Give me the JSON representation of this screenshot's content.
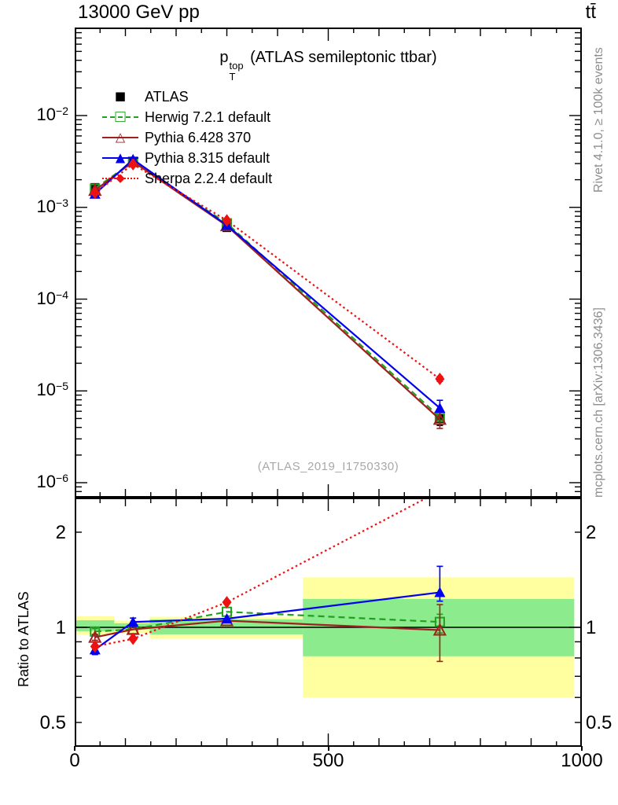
{
  "header": {
    "left_title": "13000 GeV pp",
    "right_title": "tt̄"
  },
  "plot_title": {
    "base": "p",
    "sup": "top",
    "sub": "T",
    "rest": " (ATLAS semileptonic ttbar)"
  },
  "watermark": "(ATLAS_2019_I1750330)",
  "side_notes": {
    "top": "Rivet 4.1.0, ≥ 100k events",
    "bottom": "mcplots.cern.ch [arXiv:1306.3436]"
  },
  "colors": {
    "atlas": "#000000",
    "herwig": "#22a022",
    "pythia6": "#a02020",
    "pythia8": "#0000ee",
    "sherpa": "#ee1111",
    "band_yellow": "#ffffa0",
    "band_green": "#8ceb8c",
    "frame": "#000000",
    "gray_text": "#8e8e8e",
    "watermark_gray": "#a8a8a8"
  },
  "axes": {
    "x_ticks": [
      {
        "label": "0",
        "value": 0
      },
      {
        "label": "500",
        "value": 500
      },
      {
        "label": "1000",
        "value": 1000
      }
    ],
    "main_y_ticks": [
      {
        "mant": "10",
        "exp": "−2",
        "value": 0.01
      },
      {
        "mant": "10",
        "exp": "−3",
        "value": 0.001
      },
      {
        "mant": "10",
        "exp": "−4",
        "value": 0.0001
      },
      {
        "mant": "10",
        "exp": "−5",
        "value": 1e-05
      },
      {
        "mant": "10",
        "exp": "−6",
        "value": 1e-06
      }
    ],
    "ratio_y_ticks": [
      {
        "label": "2",
        "value": 2
      },
      {
        "label": "1",
        "value": 1
      },
      {
        "label": "0.5",
        "value": 0.5
      }
    ]
  },
  "chart_data": [
    {
      "type": "line",
      "title": "p_T^top (ATLAS semileptonic ttbar)",
      "x_label": "",
      "y_scale": "log",
      "xlim": [
        0,
        1000
      ],
      "ylim": [
        6.9e-07,
        0.092
      ],
      "x": [
        40,
        115,
        300,
        720
      ],
      "series": [
        {
          "name": "ATLAS",
          "color": "#000000",
          "marker": "filled-square",
          "line": "none",
          "values": [
            0.00165,
            0.0032,
            0.0006,
            5e-06
          ],
          "errors": [
            [
              0.00156,
              0.00174
            ],
            [
              0.00305,
              0.00336
            ],
            [
              0.00057,
              0.00063
            ],
            [
              4.2e-06,
              5.9e-06
            ]
          ]
        },
        {
          "name": "Herwig 7.2.1 default",
          "color": "#22a022",
          "marker": "open-square",
          "line": "dashed",
          "values": [
            0.0016,
            0.00315,
            0.00067,
            5.2e-06
          ],
          "errors": [
            null,
            null,
            null,
            [
              4.8e-06,
              5.7e-06
            ]
          ]
        },
        {
          "name": "Pythia 6.428 370",
          "color": "#a02020",
          "marker": "open-triangle",
          "line": "solid",
          "values": [
            0.00153,
            0.00315,
            0.00063,
            4.9e-06
          ],
          "errors": [
            null,
            null,
            null,
            [
              3.9e-06,
              5.9e-06
            ]
          ]
        },
        {
          "name": "Pythia 8.315 default",
          "color": "#0000ee",
          "marker": "filled-triangle",
          "line": "solid",
          "values": [
            0.0014,
            0.00333,
            0.00064,
            6.5e-06
          ],
          "errors": [
            null,
            null,
            null,
            [
              6e-06,
              7.9e-06
            ]
          ]
        },
        {
          "name": "Sherpa 2.2.4 default",
          "color": "#ee1111",
          "marker": "filled-diamond",
          "line": "dotted",
          "values": [
            0.00144,
            0.00295,
            0.00072,
            1.35e-05
          ],
          "errors": [
            null,
            null,
            null,
            [
              1.27e-05,
              1.44e-05
            ]
          ]
        }
      ]
    },
    {
      "type": "line",
      "ylabel": "Ratio to ATLAS",
      "y_scale": "log",
      "xlim": [
        0,
        1000
      ],
      "ylim": [
        0.42,
        2.57
      ],
      "reference_line": 1,
      "x": [
        40,
        115,
        300,
        720
      ],
      "uncertainty_bands": [
        {
          "x0": 0,
          "x1": 78,
          "yellow": [
            0.95,
            1.085
          ],
          "green": [
            0.972,
            1.053
          ]
        },
        {
          "x0": 78,
          "x1": 148,
          "yellow": [
            0.96,
            1.05
          ],
          "green": [
            0.985,
            1.03
          ]
        },
        {
          "x0": 148,
          "x1": 450,
          "yellow": [
            0.92,
            1.08
          ],
          "green": [
            0.95,
            1.06
          ]
        },
        {
          "x0": 450,
          "x1": 985,
          "yellow": [
            0.6,
            1.44
          ],
          "green": [
            0.81,
            1.23
          ]
        }
      ],
      "series": [
        {
          "name": "Herwig 7.2.1 default",
          "color": "#22a022",
          "marker": "open-square",
          "line": "dashed",
          "ratios": [
            0.97,
            0.985,
            1.12,
            1.04
          ],
          "errors": [
            [
              0.95,
              0.99
            ],
            null,
            null,
            [
              0.96,
              1.1
            ]
          ]
        },
        {
          "name": "Pythia 6.428 370",
          "color": "#a02020",
          "marker": "open-triangle",
          "line": "solid",
          "ratios": [
            0.93,
            0.985,
            1.05,
            0.98
          ],
          "errors": [
            [
              0.91,
              0.95
            ],
            null,
            null,
            [
              0.78,
              1.18
            ]
          ]
        },
        {
          "name": "Pythia 8.315 default",
          "color": "#0000ee",
          "marker": "filled-triangle",
          "line": "solid",
          "ratios": [
            0.85,
            1.04,
            1.065,
            1.29
          ],
          "errors": [
            [
              0.82,
              0.88
            ],
            [
              1.01,
              1.07
            ],
            null,
            [
              1.21,
              1.56
            ]
          ]
        },
        {
          "name": "Sherpa 2.2.4 default",
          "color": "#ee1111",
          "marker": "filled-diamond",
          "line": "dotted",
          "ratios": [
            0.87,
            0.92,
            1.2,
            2.7
          ],
          "errors": [
            null,
            null,
            null,
            null
          ]
        }
      ]
    }
  ]
}
